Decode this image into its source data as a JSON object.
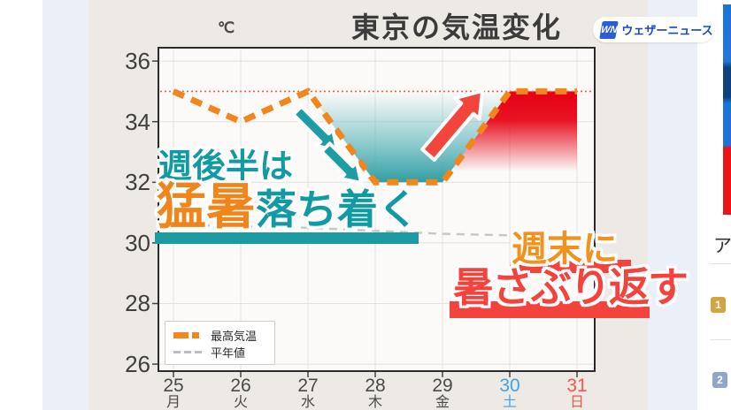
{
  "page": {
    "background": "#FFFFFF",
    "panel_background": "#EBEFF8",
    "card_background": "#EDE9E4"
  },
  "header": {
    "unit_label": "℃",
    "title": "東京の気温変化",
    "logo": {
      "monogram": "WN",
      "text": "ウェザーニュース",
      "brand_color": "#1947C8"
    }
  },
  "chart_data": {
    "type": "line",
    "title": "東京の気温変化",
    "ylabel": "℃",
    "x": [
      "25",
      "26",
      "27",
      "28",
      "29",
      "30",
      "31"
    ],
    "weekdays": [
      "月",
      "火",
      "水",
      "木",
      "金",
      "土",
      "日"
    ],
    "xlabel_colors": [
      "#4A4A4A",
      "#4A4A4A",
      "#4A4A4A",
      "#4A4A4A",
      "#4A4A4A",
      "#45A1E6",
      "#F45550"
    ],
    "series": [
      {
        "name": "最高気温",
        "values": [
          35,
          34,
          35,
          32,
          32,
          35,
          35
        ],
        "color": "#F1861C",
        "style": "dashed-thick"
      },
      {
        "name": "平年値",
        "values": [
          30.6,
          30.55,
          30.5,
          30.4,
          30.3,
          30.25,
          30.15
        ],
        "color": "#C6C6C6",
        "style": "dashed-thin"
      }
    ],
    "reference_line": {
      "value": 35,
      "color": "#FF5A4D",
      "style": "dotted"
    },
    "yticks": [
      26,
      28,
      30,
      32,
      34,
      36
    ],
    "ylim": [
      25.74,
      36.47
    ],
    "grid": true,
    "legend_position": "bottom-left",
    "fills": {
      "cool": {
        "days": [
          2,
          3,
          4,
          5
        ],
        "color": "#2E9EA4"
      },
      "hot": {
        "days": [
          4,
          5,
          6
        ],
        "color": "#E60012"
      }
    }
  },
  "legend": {
    "items": [
      {
        "label": "最高気温"
      },
      {
        "label": "平年値"
      }
    ]
  },
  "annotations": {
    "cool": {
      "line1": "週後半は",
      "line2_highlight": "猛暑",
      "line2_rest": "落ち着く",
      "text_color": "#129AA3",
      "highlight_color": "#F0851C",
      "arrow_color": "#1E9CA3",
      "bar_color": "#1D9BA2"
    },
    "hot": {
      "line1": "週末に",
      "line2": "暑さぶり返す",
      "line1_color": "#F0921D",
      "line2_color": "#F4433C",
      "arrow_color": "#F4453D",
      "bar_color": "#F4433C"
    }
  },
  "sidebar": {
    "heading_visible": "ア",
    "ranking": [
      {
        "rank": "1",
        "badge_color": "#D4A441"
      },
      {
        "rank": "2",
        "badge_color": "#92A6C9"
      }
    ]
  }
}
